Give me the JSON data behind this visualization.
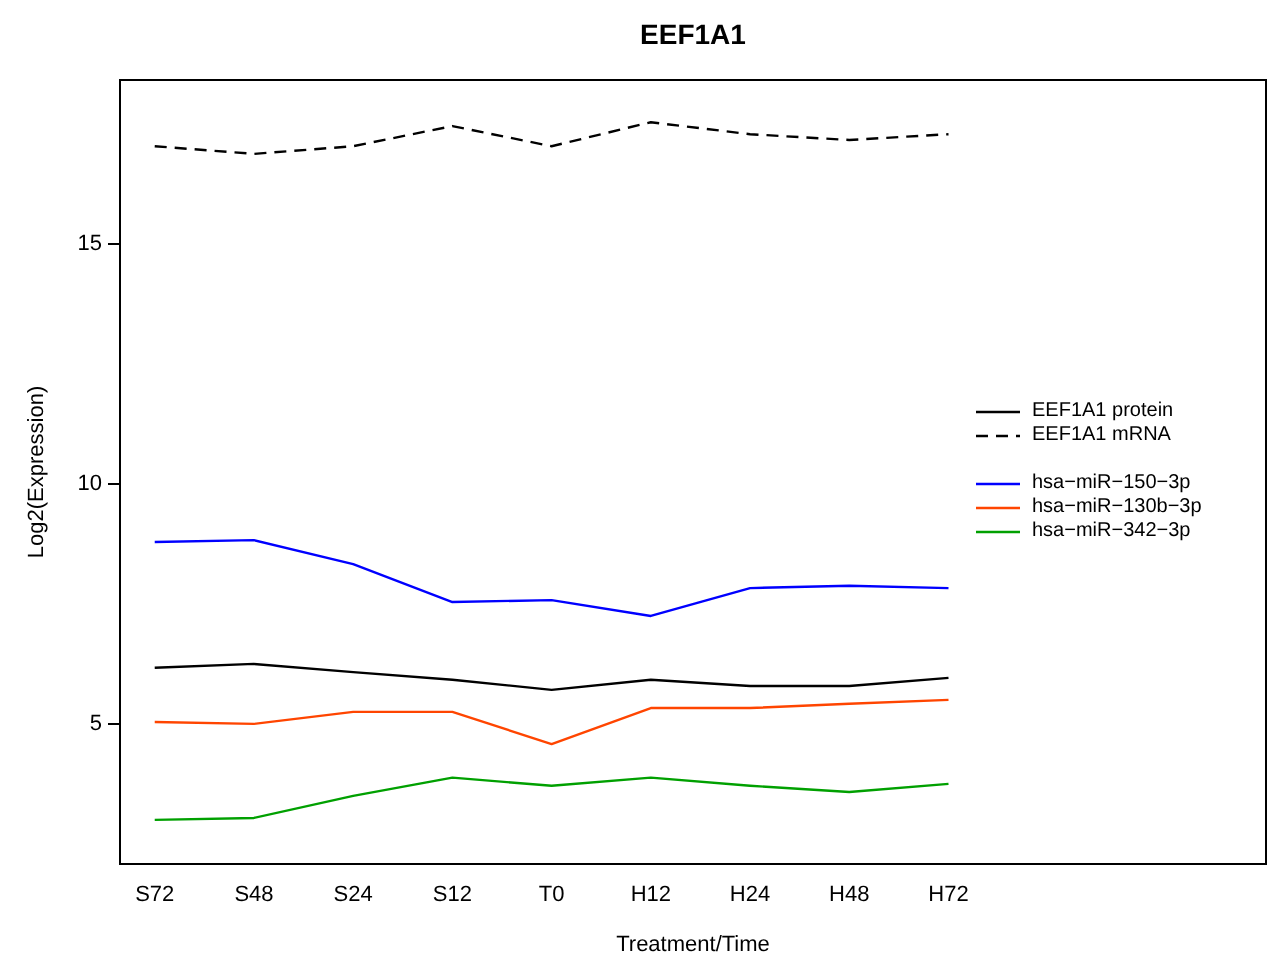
{
  "chart_data": {
    "type": "line",
    "title": "EEF1A1",
    "xlabel": "Treatment/Time",
    "ylabel": "Log2(Expression)",
    "categories": [
      "S72",
      "S48",
      "S24",
      "S12",
      "T0",
      "H12",
      "H24",
      "H48",
      "H72"
    ],
    "ylim": [
      2.08,
      18.42
    ],
    "yticks": [
      5,
      10,
      15
    ],
    "grid": false,
    "legend": "right",
    "series": [
      {
        "name": "EEF1A1 protein",
        "color": "#000000",
        "values": [
          6.17,
          6.25,
          6.08,
          5.92,
          5.71,
          5.92,
          5.79,
          5.79,
          5.96
        ]
      },
      {
        "name": "EEF1A1 mRNA",
        "color": "#000000",
        "line_style": "dashed",
        "values": [
          17.04,
          16.88,
          17.04,
          17.46,
          17.04,
          17.54,
          17.29,
          17.17,
          17.29
        ]
      },
      {
        "name": "hsa−miR−150−3p",
        "color": "#0000ff",
        "values": [
          8.79,
          8.83,
          8.33,
          7.54,
          7.58,
          7.25,
          7.83,
          7.88,
          7.83
        ]
      },
      {
        "name": "hsa−miR−130b−3p",
        "color": "#ff4500",
        "values": [
          5.04,
          5.0,
          5.25,
          5.25,
          4.58,
          5.33,
          5.33,
          5.42,
          5.5
        ]
      },
      {
        "name": "hsa−miR−342−3p",
        "color": "#00a000",
        "values": [
          3.0,
          3.04,
          3.5,
          3.88,
          3.71,
          3.88,
          3.71,
          3.58,
          3.75
        ]
      }
    ]
  }
}
